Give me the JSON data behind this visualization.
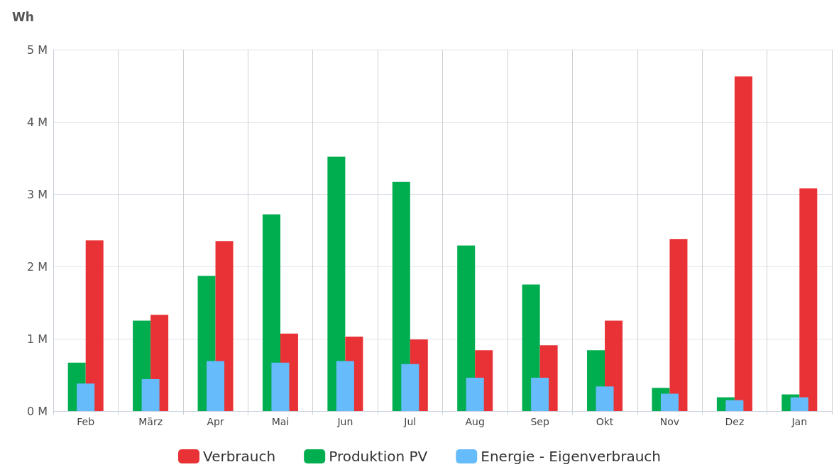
{
  "chart_data": {
    "type": "bar",
    "ylabel": "Wh",
    "categories": [
      "Feb",
      "März",
      "Apr",
      "Mai",
      "Jun",
      "Jul",
      "Aug",
      "Sep",
      "Okt",
      "Nov",
      "Dez",
      "Jan"
    ],
    "series": [
      {
        "name": "Verbrauch",
        "color": "#e93235",
        "values": [
          2.36,
          1.33,
          2.35,
          1.07,
          1.03,
          0.99,
          0.84,
          0.91,
          1.25,
          2.38,
          4.63,
          3.08
        ]
      },
      {
        "name": "Produktion PV",
        "color": "#00ad4f",
        "values": [
          0.67,
          1.25,
          1.87,
          2.72,
          3.52,
          3.17,
          2.29,
          1.75,
          0.84,
          0.32,
          0.19,
          0.23
        ]
      },
      {
        "name": "Energie - Eigenverbrauch",
        "color": "#66bbfa",
        "values": [
          0.38,
          0.44,
          0.69,
          0.67,
          0.69,
          0.65,
          0.46,
          0.46,
          0.34,
          0.24,
          0.15,
          0.19
        ]
      }
    ],
    "ylim": [
      0,
      5
    ],
    "yticks": [
      {
        "value": 0,
        "label": "0 M"
      },
      {
        "value": 1,
        "label": "1 M"
      },
      {
        "value": 2,
        "label": "2 M"
      },
      {
        "value": 3,
        "label": "3 M"
      },
      {
        "value": 4,
        "label": "4 M"
      },
      {
        "value": 5,
        "label": "5 M"
      }
    ],
    "grid": true,
    "legend": "bottom"
  }
}
